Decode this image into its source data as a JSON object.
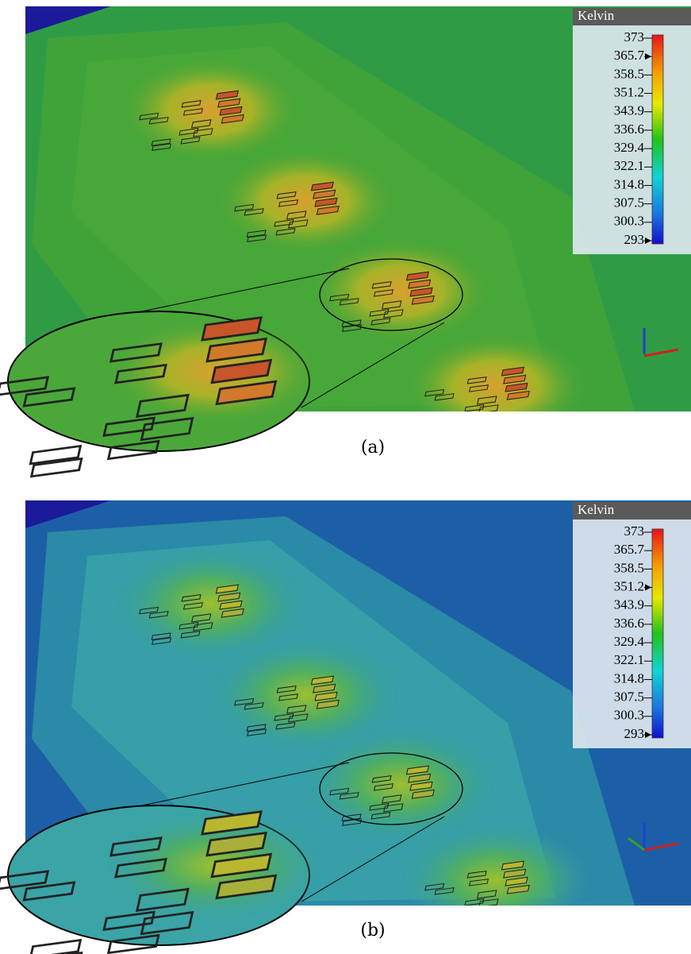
{
  "panels": [
    {
      "label": "(a)",
      "legend": {
        "title": "Kelvin",
        "ticks": [
          373,
          365.7,
          358.5,
          351.2,
          343.9,
          336.6,
          329.4,
          322.1,
          314.8,
          307.5,
          300.3,
          293
        ]
      }
    },
    {
      "label": "(b)",
      "legend": {
        "title": "Kelvin",
        "ticks": [
          373,
          365.7,
          358.5,
          351.2,
          343.9,
          336.6,
          329.4,
          322.1,
          314.8,
          307.5,
          300.3,
          293
        ]
      }
    }
  ]
}
